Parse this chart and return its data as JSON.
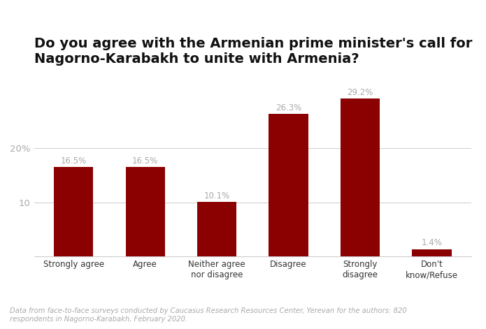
{
  "title": "Do you agree with the Armenian prime minister's call for\nNagorno-Karabakh to unite with Armenia?",
  "categories": [
    "Strongly agree",
    "Agree",
    "Neither agree\nnor disagree",
    "Disagree",
    "Strongly\ndisagree",
    "Don't\nknow/Refuse"
  ],
  "values": [
    16.5,
    16.5,
    10.1,
    26.3,
    29.2,
    1.4
  ],
  "labels": [
    "16.5%",
    "16.5%",
    "10.1%",
    "26.3%",
    "29.2%",
    "1.4%"
  ],
  "bar_color": "#8B0000",
  "yticks": [
    10,
    20
  ],
  "ytick_labels": [
    "10",
    "20%"
  ],
  "ylim": [
    0,
    34
  ],
  "title_fontsize": 14,
  "label_color": "#aaaaaa",
  "tick_color": "#aaaaaa",
  "xtick_color": "#333333",
  "background_color": "#ffffff",
  "footnote": "Data from face-to-face surveys conducted by Caucasus Research Resources Center, Yerevan for the authors: 820\nrespondents in Nagorno-Karabakh, February 2020."
}
